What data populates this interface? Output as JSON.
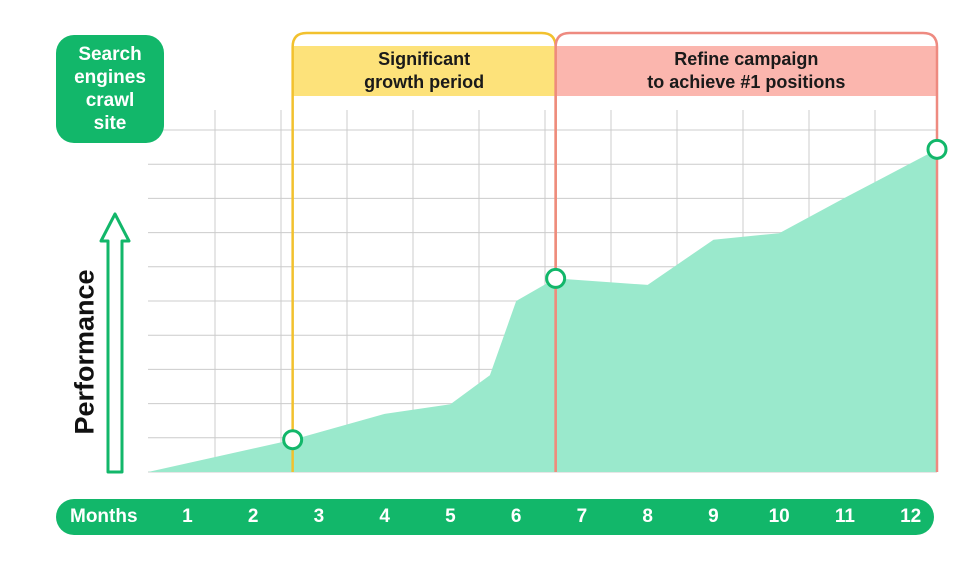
{
  "chart_data": {
    "type": "area",
    "ylabel": "Performance",
    "xlabel": "Months",
    "x": [
      1,
      2,
      3,
      4,
      5,
      6,
      7,
      8,
      9,
      10,
      11,
      12
    ],
    "x_range": [
      0.4,
      12.4
    ],
    "y_range": [
      0,
      10.6
    ],
    "y_ticks_shown": false,
    "grid": true,
    "series": [
      {
        "points": [
          [
            0.4,
            0
          ],
          [
            2.6,
            1.0
          ],
          [
            4.0,
            1.8
          ],
          [
            5.0,
            2.1
          ],
          [
            5.6,
            3.0
          ],
          [
            6.0,
            5.3
          ],
          [
            6.6,
            6.0
          ],
          [
            8.0,
            5.8
          ],
          [
            9.0,
            7.2
          ],
          [
            10.0,
            7.4
          ],
          [
            11.0,
            8.5
          ],
          [
            12.4,
            10.0
          ]
        ],
        "color": "#9ae9cc"
      }
    ],
    "markers": [
      [
        2.6,
        1.0
      ],
      [
        6.6,
        6.0
      ],
      [
        12.4,
        10.0
      ]
    ],
    "callout": "Search engines\ncrawl\nsite",
    "periods": [
      {
        "label": "Significant\ngrowth period",
        "start": 2.6,
        "end": 6.6,
        "color": "#f2c12e",
        "fill": "#fde27a"
      },
      {
        "label": "Refine campaign\nto achieve #1 positions",
        "start": 6.6,
        "end": 12.4,
        "color": "#ee8a80",
        "fill": "#fbb6ae"
      }
    ]
  },
  "colors": {
    "accent": "#12b76a",
    "area": "#9ae9cc",
    "grid": "#cccccc"
  }
}
